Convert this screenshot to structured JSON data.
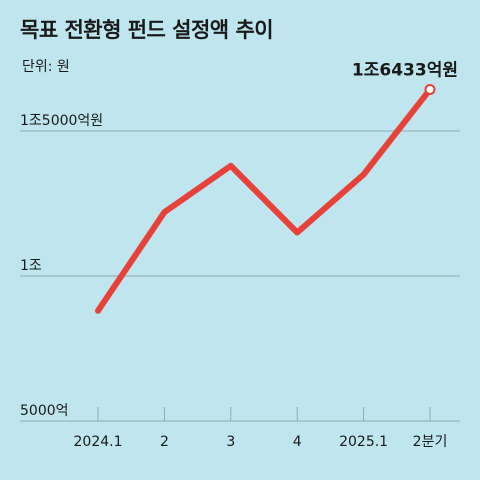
{
  "title": "목표 전환형 펀드 설정액 추이",
  "unit_label": "단위: 원",
  "colors": {
    "background": "#bfe6ee",
    "line": "#e8413a",
    "grid": "#8fa9b0"
  },
  "chart_data": {
    "type": "line",
    "title": "목표 전환형 펀드 설정액 추이",
    "unit": "단위: 원",
    "categories": [
      "2024.1",
      "2",
      "3",
      "4",
      "2025.1",
      "2분기"
    ],
    "series": [
      {
        "values": [
          8800,
          12200,
          13800,
          11500,
          13500,
          16433
        ]
      }
    ],
    "ylim": [
      5000,
      16433
    ],
    "yticks": [
      {
        "value": 5000,
        "label": "5000억"
      },
      {
        "value": 10000,
        "label": "1조"
      },
      {
        "value": 15000,
        "label": "1조5000억원"
      }
    ],
    "annotation": {
      "index": 5,
      "label": "1조6433억원"
    },
    "grid": true,
    "legend": "none"
  }
}
